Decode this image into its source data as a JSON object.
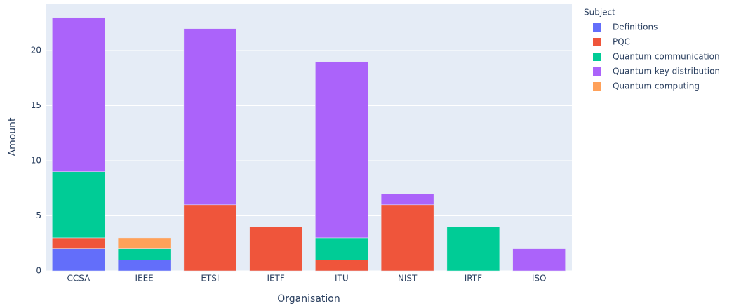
{
  "chart_data": {
    "type": "bar",
    "stacked": true,
    "x_label": "Organisation",
    "y_label": "Amount",
    "legend_title": "Subject",
    "categories": [
      "CCSA",
      "IEEE",
      "ETSI",
      "IETF",
      "ITU",
      "NIST",
      "IRTF",
      "ISO"
    ],
    "series": [
      {
        "name": "Definitions",
        "color": "#636efa",
        "values": [
          2,
          1,
          0,
          0,
          0,
          0,
          0,
          0
        ]
      },
      {
        "name": "PQC",
        "color": "#ef553b",
        "values": [
          1,
          0,
          6,
          4,
          1,
          6,
          0,
          0
        ]
      },
      {
        "name": "Quantum communication",
        "color": "#00cc96",
        "values": [
          6,
          1,
          0,
          0,
          2,
          0,
          4,
          0
        ]
      },
      {
        "name": "Quantum key distribution",
        "color": "#ab63fa",
        "values": [
          14,
          0,
          16,
          0,
          16,
          1,
          0,
          2
        ]
      },
      {
        "name": "Quantum computing",
        "color": "#ffa15a",
        "values": [
          0,
          1,
          0,
          0,
          0,
          0,
          0,
          0
        ]
      }
    ],
    "ylim": [
      0,
      24.27
    ],
    "yticks": [
      0,
      5,
      10,
      15,
      20
    ],
    "grid": true,
    "legend": "right"
  }
}
